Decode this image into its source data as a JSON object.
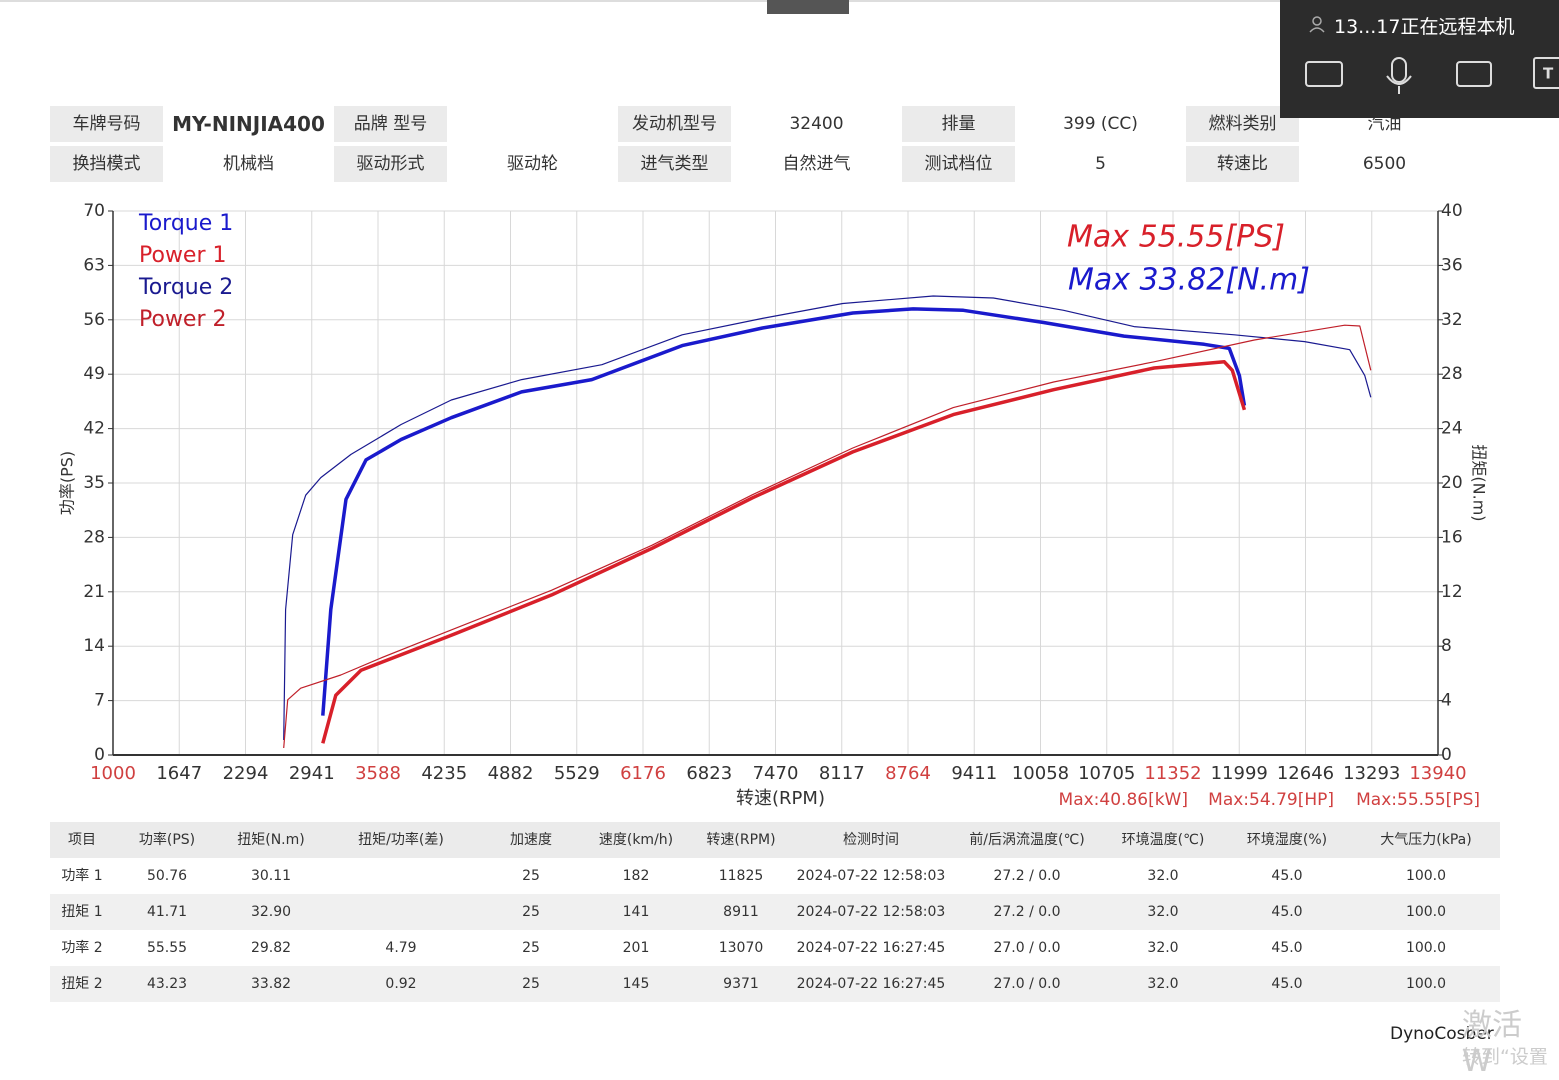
{
  "header": {
    "row1": [
      {
        "label": "车牌号码",
        "value": "MY-NINJIA400"
      },
      {
        "label": "品牌 型号"
      },
      {
        "label": "发动机型号",
        "value": "32400"
      },
      {
        "label": "排量",
        "value": "399 (CC)"
      },
      {
        "label": "燃料类别",
        "value": "汽油"
      }
    ],
    "row2": [
      {
        "label": "换挡模式",
        "value": "机械档"
      },
      {
        "label": "驱动形式",
        "value": "驱动轮"
      },
      {
        "label": "进气类型",
        "value": "自然进气"
      },
      {
        "label": "测试档位",
        "value": "5"
      },
      {
        "label": "转速比",
        "value": "6500"
      }
    ]
  },
  "chart_data": {
    "type": "line",
    "xlabel": "转速(RPM)",
    "ylabel": "功率(PS)",
    "y2label": "扭矩(N.m)",
    "xlim": [
      1000,
      13940
    ],
    "xticks": [
      1000,
      1647,
      2294,
      2941,
      3588,
      4235,
      4882,
      5529,
      6176,
      6823,
      7470,
      8117,
      8764,
      9411,
      10058,
      10705,
      11352,
      11999,
      12646,
      13293,
      13940
    ],
    "ylim": [
      0,
      70
    ],
    "yticks": [
      0,
      7,
      14,
      21,
      28,
      35,
      42,
      49,
      56,
      63,
      70
    ],
    "y2lim": [
      0,
      40
    ],
    "y2ticks": [
      0,
      4,
      8,
      12,
      16,
      20,
      24,
      28,
      32,
      36,
      40
    ],
    "grid": true,
    "legend": "upper left",
    "series": [
      {
        "name": "Torque 1",
        "color": "#1a1acc",
        "width": 3.5,
        "axis": "y2",
        "x": [
          3049,
          3127,
          3275,
          3471,
          3814,
          4304,
          4990,
          5676,
          6559,
          7343,
          8225,
          8814,
          9304,
          10088,
          10873,
          11657,
          11902,
          12000,
          12049
        ],
        "values": [
          2.9,
          10.7,
          18.8,
          21.7,
          23.2,
          24.8,
          26.7,
          27.6,
          30.1,
          31.4,
          32.5,
          32.8,
          32.7,
          31.8,
          30.8,
          30.2,
          29.9,
          27.9,
          25.7
        ]
      },
      {
        "name": "Power 1",
        "color": "#d8202a",
        "width": 3.5,
        "x": [
          3049,
          3176,
          3422,
          3814,
          4304,
          5284,
          6265,
          7245,
          8225,
          9206,
          10186,
          11167,
          11853,
          11931,
          12049
        ],
        "values": [
          1.5,
          7.7,
          10.9,
          12.9,
          15.4,
          20.6,
          26.6,
          33.1,
          39.0,
          43.8,
          47.0,
          49.8,
          50.6,
          49.5,
          44.4
        ]
      },
      {
        "name": "Torque 2",
        "color": "#1a1a90",
        "width": 1.2,
        "axis": "y2",
        "x": [
          2667,
          2686,
          2755,
          2882,
          3029,
          3324,
          3814,
          4304,
          4990,
          5775,
          6559,
          7343,
          8127,
          9010,
          9598,
          10284,
          10971,
          11951,
          12637,
          13078,
          13225,
          13284
        ],
        "values": [
          1.1,
          10.7,
          16.2,
          19.1,
          20.4,
          22.1,
          24.3,
          26.1,
          27.6,
          28.7,
          30.9,
          32.1,
          33.2,
          33.75,
          33.6,
          32.7,
          31.5,
          30.9,
          30.4,
          29.8,
          27.9,
          26.3
        ]
      },
      {
        "name": "Power 2",
        "color": "#c0202a",
        "width": 1.2,
        "x": [
          2667,
          2706,
          2833,
          3225,
          3618,
          4304,
          5284,
          6265,
          7245,
          8225,
          9206,
          10186,
          11167,
          12147,
          13029,
          13176,
          13284
        ],
        "values": [
          0.9,
          7.1,
          8.6,
          10.3,
          12.5,
          16.1,
          21.2,
          27.0,
          33.5,
          39.5,
          44.7,
          48.0,
          50.6,
          53.4,
          55.3,
          55.2,
          49.5
        ]
      }
    ],
    "annotations": [
      {
        "text": "Max 55.55[PS]",
        "color": "#d8202a"
      },
      {
        "text": "Max 33.82[N.m]",
        "color": "#1a1acc"
      }
    ],
    "footnotes": [
      "Max:40.86[kW]",
      "Max:54.79[HP]",
      "Max:55.55[PS]"
    ]
  },
  "table": {
    "columns": [
      "项目",
      "功率(PS)",
      "扭矩(N.m)",
      "扭矩/功率(差)",
      "加速度",
      "速度(km/h)",
      "转速(RPM)",
      "检测时间",
      "前/后涡流温度(℃)",
      "环境温度(℃)",
      "环境湿度(%)",
      "大气压力(kPa)"
    ],
    "rows": [
      [
        "功率 1",
        "50.76",
        "30.11",
        null,
        "25",
        "182",
        "11825",
        "2024-07-22 12:58:03",
        "27.2 / 0.0",
        "32.0",
        "45.0",
        "100.0"
      ],
      [
        "扭矩 1",
        "41.71",
        "32.90",
        null,
        "25",
        "141",
        "8911",
        "2024-07-22 12:58:03",
        "27.2 / 0.0",
        "32.0",
        "45.0",
        "100.0"
      ],
      [
        "功率 2",
        "55.55",
        "29.82",
        "4.79",
        "25",
        "201",
        "13070",
        "2024-07-22 16:27:45",
        "27.0 / 0.0",
        "32.0",
        "45.0",
        "100.0"
      ],
      [
        "扭矩 2",
        "43.23",
        "33.82",
        "0.92",
        "25",
        "145",
        "9371",
        "2024-07-22 16:27:45",
        "27.0 / 0.0",
        "32.0",
        "45.0",
        "100.0"
      ]
    ]
  },
  "overlay": {
    "status": "13...17正在远程本机"
  },
  "footer": {
    "brand": "DynoCosber",
    "watermark": [
      "激活 W",
      "转到“设置"
    ]
  }
}
